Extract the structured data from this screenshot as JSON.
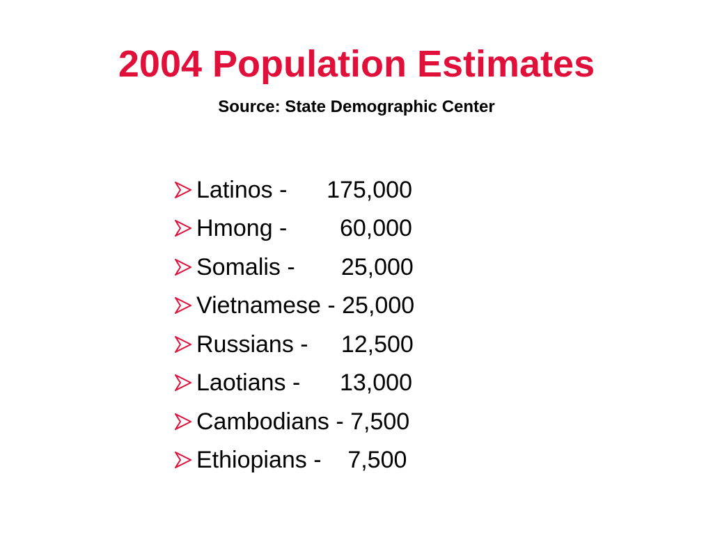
{
  "slide": {
    "title": "2004 Population Estimates",
    "subtitle": "Source: State Demographic Center",
    "colors": {
      "title": "#e0103a",
      "text": "#000000",
      "bullet": "#e0103a"
    },
    "bullet_icon": "arrowhead-bullet-icon",
    "items": [
      {
        "label": "Latinos -      175,000"
      },
      {
        "label": "Hmong -        60,000"
      },
      {
        "label": "Somalis -       25,000"
      },
      {
        "label": "Vietnamese - 25,000"
      },
      {
        "label": "Russians -     12,500"
      },
      {
        "label": "Laotians -      13,000"
      },
      {
        "label": "Cambodians - 7,500"
      },
      {
        "label": "Ethiopians -    7,500"
      }
    ]
  }
}
